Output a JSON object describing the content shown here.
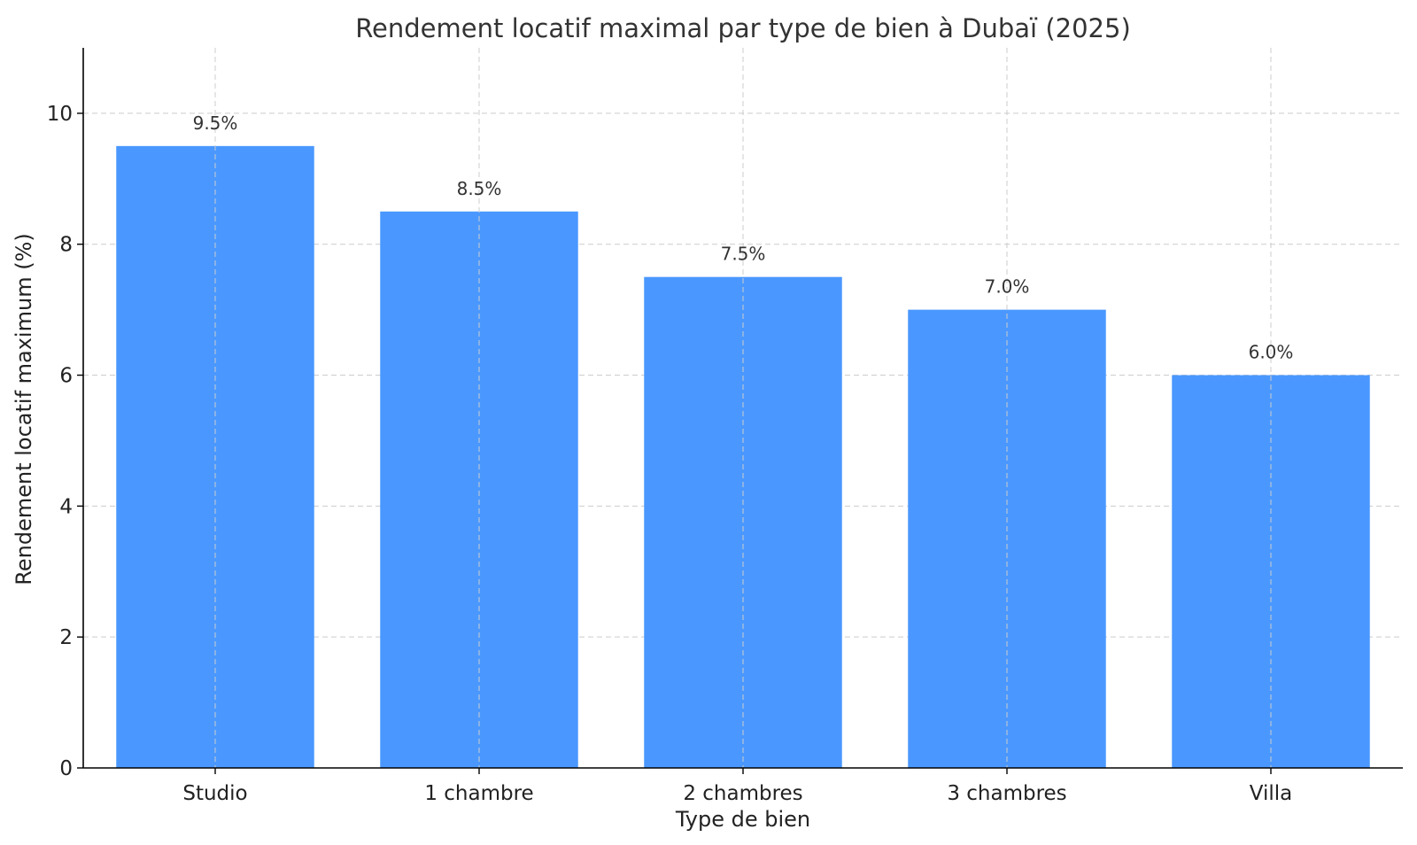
{
  "chart_data": {
    "type": "bar",
    "title": "Rendement locatif maximal par type de bien à Dubaï (2025)",
    "xlabel": "Type de bien",
    "ylabel": "Rendement locatif maximum (%)",
    "categories": [
      "Studio",
      "1 chambre",
      "2 chambres",
      "3 chambres",
      "Villa"
    ],
    "values": [
      9.5,
      8.5,
      7.5,
      7.0,
      6.0
    ],
    "data_labels": [
      "9.5%",
      "8.5%",
      "7.5%",
      "7.0%",
      "6.0%"
    ],
    "ylim": [
      0,
      11
    ],
    "yticks": [
      0,
      2,
      4,
      6,
      8,
      10
    ],
    "ytick_labels": [
      "0",
      "2",
      "4",
      "6",
      "8",
      "10"
    ],
    "grid": true,
    "bar_color": "#4a98ff"
  }
}
